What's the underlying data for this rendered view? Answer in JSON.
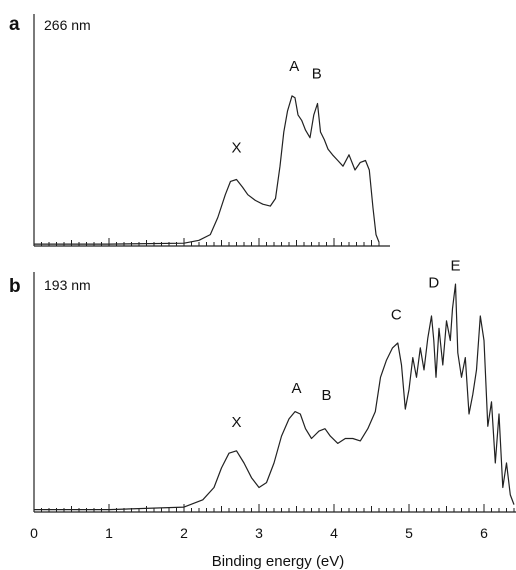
{
  "chart_data": [
    {
      "type": "line",
      "panel_label": "a",
      "wavelength": "266 nm",
      "xlim": [
        0,
        6.4
      ],
      "peak_labels": [
        {
          "label": "X",
          "x": 2.7,
          "y": 0.47
        },
        {
          "label": "A",
          "x": 3.47,
          "y": 0.9
        },
        {
          "label": "B",
          "x": 3.77,
          "y": 0.86
        }
      ],
      "series": [
        {
          "x": [
            0,
            1.0,
            2.0,
            2.2,
            2.35,
            2.45,
            2.55,
            2.62,
            2.7,
            2.78,
            2.85,
            2.95,
            3.05,
            3.15,
            3.22,
            3.28,
            3.33,
            3.38,
            3.44,
            3.48,
            3.52,
            3.57,
            3.62,
            3.68,
            3.73,
            3.78,
            3.82,
            3.87,
            3.92,
            3.98,
            4.05,
            4.12,
            4.2,
            4.28,
            4.35,
            4.42,
            4.47,
            4.52,
            4.56,
            4.6
          ],
          "y": [
            0.01,
            0.01,
            0.015,
            0.03,
            0.06,
            0.15,
            0.27,
            0.34,
            0.35,
            0.31,
            0.27,
            0.24,
            0.22,
            0.21,
            0.25,
            0.42,
            0.6,
            0.71,
            0.79,
            0.78,
            0.69,
            0.66,
            0.61,
            0.57,
            0.69,
            0.75,
            0.6,
            0.56,
            0.51,
            0.48,
            0.45,
            0.42,
            0.48,
            0.4,
            0.44,
            0.45,
            0.4,
            0.2,
            0.06,
            0.02
          ]
        }
      ]
    },
    {
      "type": "line",
      "panel_label": "b",
      "wavelength": "193 nm",
      "xlim": [
        0,
        6.4
      ],
      "xticks": [
        "0",
        "1",
        "2",
        "3",
        "4",
        "5",
        "6"
      ],
      "xlabel": "Binding energy (eV)",
      "peak_labels": [
        {
          "label": "X",
          "x": 2.7,
          "y": 0.33
        },
        {
          "label": "A",
          "x": 3.5,
          "y": 0.47
        },
        {
          "label": "B",
          "x": 3.9,
          "y": 0.44
        },
        {
          "label": "C",
          "x": 4.83,
          "y": 0.77
        },
        {
          "label": "D",
          "x": 5.33,
          "y": 0.9
        },
        {
          "label": "E",
          "x": 5.62,
          "y": 0.97
        }
      ],
      "series": [
        {
          "x": [
            0,
            1.0,
            2.0,
            2.25,
            2.4,
            2.5,
            2.6,
            2.7,
            2.8,
            2.9,
            3.0,
            3.1,
            3.2,
            3.3,
            3.4,
            3.48,
            3.55,
            3.62,
            3.7,
            3.8,
            3.88,
            3.95,
            4.05,
            4.15,
            4.25,
            4.35,
            4.45,
            4.55,
            4.62,
            4.7,
            4.78,
            4.85,
            4.9,
            4.95,
            5.0,
            5.05,
            5.1,
            5.15,
            5.2,
            5.25,
            5.3,
            5.33,
            5.36,
            5.4,
            5.45,
            5.5,
            5.55,
            5.58,
            5.62,
            5.65,
            5.7,
            5.75,
            5.8,
            5.85,
            5.9,
            5.95,
            6.0,
            6.05,
            6.1,
            6.15,
            6.2,
            6.25,
            6.3,
            6.35,
            6.4
          ],
          "y": [
            0.01,
            0.01,
            0.02,
            0.05,
            0.1,
            0.18,
            0.24,
            0.25,
            0.2,
            0.14,
            0.1,
            0.12,
            0.2,
            0.31,
            0.38,
            0.41,
            0.4,
            0.34,
            0.3,
            0.33,
            0.34,
            0.31,
            0.28,
            0.3,
            0.3,
            0.29,
            0.34,
            0.41,
            0.55,
            0.62,
            0.67,
            0.69,
            0.6,
            0.42,
            0.5,
            0.63,
            0.55,
            0.67,
            0.58,
            0.71,
            0.8,
            0.7,
            0.55,
            0.75,
            0.6,
            0.78,
            0.7,
            0.83,
            0.93,
            0.65,
            0.55,
            0.63,
            0.4,
            0.48,
            0.58,
            0.8,
            0.7,
            0.35,
            0.45,
            0.2,
            0.4,
            0.1,
            0.2,
            0.07,
            0.03
          ]
        }
      ]
    }
  ]
}
